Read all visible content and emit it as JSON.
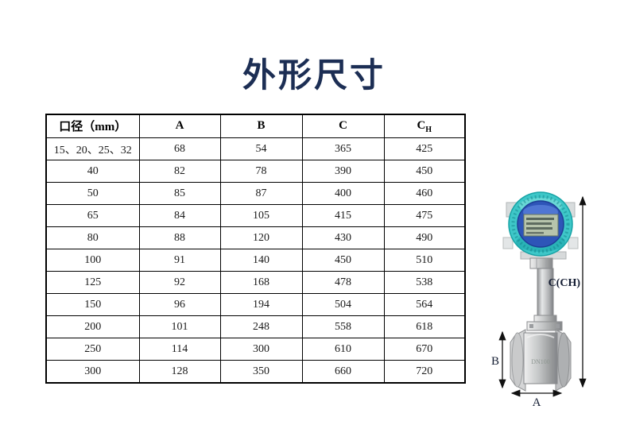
{
  "page": {
    "title": "外形尺寸"
  },
  "table": {
    "headers": [
      {
        "label": "口径（mm）",
        "sub": ""
      },
      {
        "label": "A",
        "sub": ""
      },
      {
        "label": "B",
        "sub": ""
      },
      {
        "label": "C",
        "sub": ""
      },
      {
        "label": "C",
        "sub": "H"
      }
    ],
    "rows": [
      {
        "cells": [
          "15、20、25、32",
          "68",
          "54",
          "365",
          "425"
        ]
      },
      {
        "cells": [
          "40",
          "82",
          "78",
          "390",
          "450"
        ]
      },
      {
        "cells": [
          "50",
          "85",
          "87",
          "400",
          "460"
        ]
      },
      {
        "cells": [
          "65",
          "84",
          "105",
          "415",
          "475"
        ]
      },
      {
        "cells": [
          "80",
          "88",
          "120",
          "430",
          "490"
        ]
      },
      {
        "cells": [
          "100",
          "91",
          "140",
          "450",
          "510"
        ]
      },
      {
        "cells": [
          "125",
          "92",
          "168",
          "478",
          "538"
        ]
      },
      {
        "cells": [
          "150",
          "96",
          "194",
          "504",
          "564"
        ]
      },
      {
        "cells": [
          "200",
          "101",
          "248",
          "558",
          "618"
        ]
      },
      {
        "cells": [
          "250",
          "114",
          "300",
          "610",
          "670"
        ]
      },
      {
        "cells": [
          "300",
          "128",
          "350",
          "660",
          "720"
        ]
      }
    ]
  },
  "figure": {
    "labels": {
      "total_height": "C(CH)",
      "body_height": "B",
      "body_width": "A"
    },
    "device_marking": "DN100"
  },
  "colors": {
    "title_text": "#1c2e54",
    "table_border": "#000000",
    "device_head_teal": "#3ec7c8",
    "device_ring_blue": "#2e55b8",
    "lcd_green": "#b7c4ac",
    "metal_gray": "#b9b9b9",
    "dimension_line": "#111111",
    "dimension_text": "#141d33"
  }
}
